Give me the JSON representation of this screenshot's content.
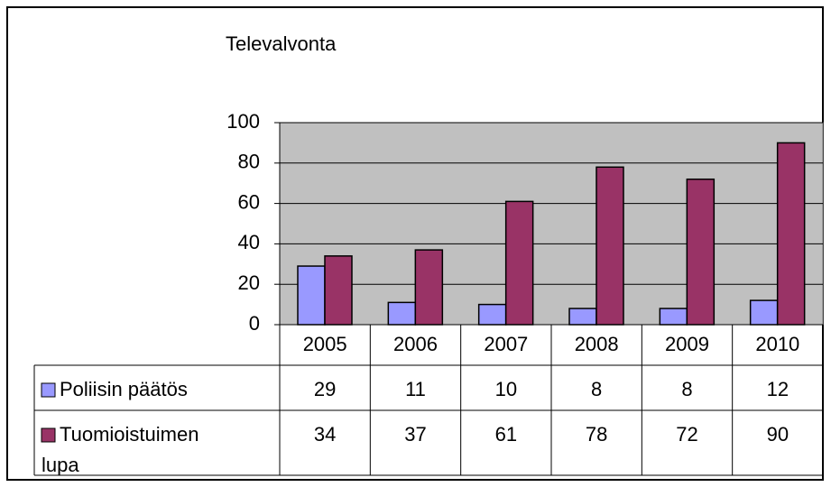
{
  "chart_data": {
    "type": "bar",
    "title": "Televalvonta",
    "categories": [
      "2005",
      "2006",
      "2007",
      "2008",
      "2009",
      "2010"
    ],
    "series": [
      {
        "name": "Poliisin päätös",
        "color": "#9999ff",
        "values": [
          29,
          11,
          10,
          8,
          8,
          12
        ]
      },
      {
        "name": "Tuomioistuimen lupa",
        "color": "#993366",
        "values": [
          34,
          37,
          61,
          78,
          72,
          90
        ]
      }
    ],
    "ylim": [
      0,
      100
    ],
    "yticks": [
      0,
      20,
      40,
      60,
      80,
      100
    ],
    "grid": true,
    "data_table": true
  }
}
